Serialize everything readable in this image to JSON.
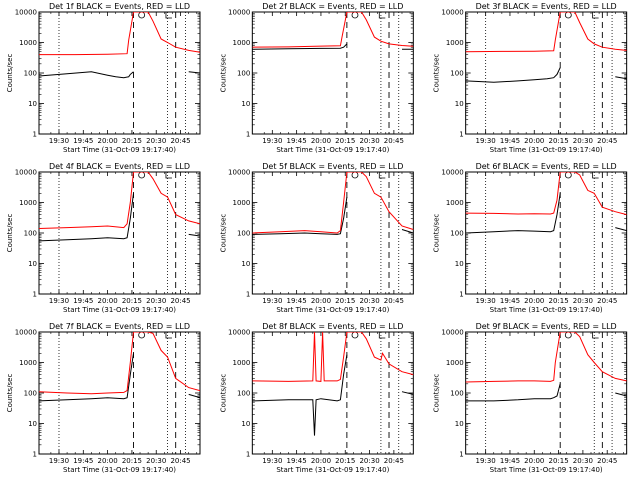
{
  "figure": {
    "xlabel": "Start Time (31-Oct-09 19:17:40)",
    "ylabel": "Counts/sec",
    "colors": {
      "events": "#000000",
      "lld": "#ff0000",
      "background": "#ffffff"
    }
  },
  "chart_data": [
    {
      "type": "line",
      "title": "Det 1f BLACK = Events, RED = LLD",
      "xlabel": "Start Time (31-Oct-09 19:17:40)",
      "ylabel": "Counts/sec",
      "x_ticks": [
        "19:30",
        "19:45",
        "20:00",
        "20:15",
        "20:30",
        "20:45"
      ],
      "y_ticks": [
        "1",
        "10",
        "100",
        "1000",
        "10000"
      ],
      "y_scale": "log",
      "ylim": [
        1,
        10000
      ],
      "xlim": [
        "19:17:40",
        "20:57"
      ],
      "vlines_dotted": [
        "19:30",
        "20:37",
        "20:48"
      ],
      "vlines_dashed": [
        "20:16",
        "20:42"
      ],
      "markers": [
        "20:21",
        "20:36"
      ],
      "series": [
        {
          "name": "Events",
          "color": "#000000",
          "x": [
            "19:17:40",
            "19:35",
            "19:50",
            "20:00",
            "20:05",
            "20:10",
            "20:13",
            "20:14",
            "20:16",
            "20:49",
            "20:50",
            "20:57"
          ],
          "y": [
            80,
            95,
            110,
            85,
            75,
            70,
            75,
            90,
            110,
            null,
            110,
            100
          ]
        },
        {
          "name": "LLD",
          "color": "#ff0000",
          "x": [
            "19:17:40",
            "19:40",
            "20:00",
            "20:12",
            "20:13",
            "20:16",
            "20:20",
            "20:25",
            "20:28",
            "20:33",
            "20:37",
            "20:42",
            "20:50",
            "20:57"
          ],
          "y": [
            400,
            400,
            410,
            430,
            1200,
            10000,
            10000,
            10000,
            5000,
            1300,
            1000,
            700,
            550,
            480
          ]
        }
      ]
    },
    {
      "type": "line",
      "title": "Det 2f BLACK = Events, RED = LLD",
      "xlabel": "Start Time (31-Oct-09 19:17:40)",
      "ylabel": "Counts/sec",
      "x_ticks": [
        "19:30",
        "19:45",
        "20:00",
        "20:15",
        "20:30",
        "20:45"
      ],
      "y_ticks": [
        "1",
        "10",
        "100",
        "1000",
        "10000"
      ],
      "y_scale": "log",
      "ylim": [
        1,
        10000
      ],
      "xlim": [
        "19:17:40",
        "20:57"
      ],
      "vlines_dotted": [
        "20:37",
        "20:48"
      ],
      "vlines_dashed": [
        "20:16",
        "20:42"
      ],
      "markers": [
        "20:21",
        "20:36"
      ],
      "series": [
        {
          "name": "Events",
          "color": "#000000",
          "x": [
            "19:17:40",
            "19:40",
            "20:00",
            "20:12",
            "20:14",
            "20:16",
            "20:49",
            "20:50",
            "20:57"
          ],
          "y": [
            600,
            620,
            640,
            650,
            700,
            900,
            null,
            600,
            600
          ]
        },
        {
          "name": "LLD",
          "color": "#ff0000",
          "x": [
            "19:17:40",
            "19:40",
            "20:00",
            "20:12",
            "20:13",
            "20:16",
            "20:20",
            "20:25",
            "20:28",
            "20:33",
            "20:37",
            "20:42",
            "20:50",
            "20:57"
          ],
          "y": [
            700,
            720,
            760,
            780,
            1500,
            10000,
            10000,
            10000,
            5500,
            1500,
            1100,
            900,
            800,
            750
          ]
        }
      ]
    },
    {
      "type": "line",
      "title": "Det 3f BLACK = Events, RED = LLD",
      "xlabel": "Start Time (31-Oct-09 19:17:40)",
      "ylabel": "Counts/sec",
      "x_ticks": [
        "19:30",
        "19:45",
        "20:00",
        "20:15",
        "20:30",
        "20:45"
      ],
      "y_ticks": [
        "1",
        "10",
        "100",
        "1000",
        "10000"
      ],
      "y_scale": "log",
      "ylim": [
        1,
        10000
      ],
      "xlim": [
        "19:17:40",
        "20:57"
      ],
      "vlines_dotted": [
        "19:30",
        "20:37",
        "20:48"
      ],
      "vlines_dashed": [
        "20:16",
        "20:42"
      ],
      "markers": [
        "20:21",
        "20:36"
      ],
      "series": [
        {
          "name": "Events",
          "color": "#000000",
          "x": [
            "19:17:40",
            "19:35",
            "19:50",
            "20:00",
            "20:08",
            "20:12",
            "20:14",
            "20:16",
            "20:49",
            "20:50",
            "20:57"
          ],
          "y": [
            55,
            50,
            55,
            60,
            65,
            70,
            90,
            150,
            null,
            75,
            65
          ]
        },
        {
          "name": "LLD",
          "color": "#ff0000",
          "x": [
            "19:17:40",
            "19:40",
            "20:00",
            "20:12",
            "20:13",
            "20:16",
            "20:20",
            "20:25",
            "20:28",
            "20:33",
            "20:37",
            "20:42",
            "20:50",
            "20:57"
          ],
          "y": [
            500,
            510,
            520,
            540,
            1200,
            10000,
            10000,
            10000,
            4500,
            1300,
            900,
            700,
            600,
            550
          ]
        }
      ]
    },
    {
      "type": "line",
      "title": "Det 4f BLACK = Events, RED = LLD",
      "xlabel": "Start Time (31-Oct-09 19:17:40)",
      "ylabel": "Counts/sec",
      "x_ticks": [
        "19:30",
        "19:45",
        "20:00",
        "20:15",
        "20:30",
        "20:45"
      ],
      "y_ticks": [
        "1",
        "10",
        "100",
        "1000",
        "10000"
      ],
      "y_scale": "log",
      "ylim": [
        1,
        10000
      ],
      "xlim": [
        "19:17:40",
        "20:57"
      ],
      "vlines_dotted": [
        "19:30",
        "20:37",
        "20:48"
      ],
      "vlines_dashed": [
        "20:16",
        "20:42"
      ],
      "markers": [
        "20:21",
        "20:36"
      ],
      "series": [
        {
          "name": "Events",
          "color": "#000000",
          "x": [
            "19:17:40",
            "19:35",
            "19:50",
            "20:00",
            "20:10",
            "20:12",
            "20:14",
            "20:16",
            "20:49",
            "20:50",
            "20:57"
          ],
          "y": [
            55,
            60,
            65,
            70,
            65,
            70,
            300,
            2000,
            null,
            90,
            80
          ]
        },
        {
          "name": "LLD",
          "color": "#ff0000",
          "x": [
            "19:17:40",
            "19:35",
            "19:50",
            "20:00",
            "20:10",
            "20:12",
            "20:14",
            "20:16",
            "20:20",
            "20:25",
            "20:28",
            "20:33",
            "20:37",
            "20:42",
            "20:50",
            "20:57"
          ],
          "y": [
            140,
            150,
            160,
            170,
            150,
            200,
            1000,
            10000,
            10000,
            10000,
            6000,
            2000,
            1500,
            400,
            250,
            200
          ]
        }
      ]
    },
    {
      "type": "line",
      "title": "Det 5f BLACK = Events, RED = LLD",
      "xlabel": "Start Time (31-Oct-09 19:17:40)",
      "ylabel": "Counts/sec",
      "x_ticks": [
        "19:30",
        "19:45",
        "20:00",
        "20:15",
        "20:30",
        "20:45"
      ],
      "y_ticks": [
        "1",
        "10",
        "100",
        "1000",
        "10000"
      ],
      "y_scale": "log",
      "ylim": [
        1,
        10000
      ],
      "xlim": [
        "19:17:40",
        "20:57"
      ],
      "vlines_dotted": [
        "20:37",
        "20:48"
      ],
      "vlines_dashed": [
        "20:16",
        "20:42"
      ],
      "markers": [
        "20:21",
        "20:36"
      ],
      "series": [
        {
          "name": "Events",
          "color": "#000000",
          "x": [
            "19:17:40",
            "19:35",
            "19:50",
            "20:00",
            "20:10",
            "20:12",
            "20:14",
            "20:16",
            "20:49",
            "20:50",
            "20:57"
          ],
          "y": [
            90,
            95,
            100,
            95,
            90,
            95,
            300,
            1500,
            null,
            130,
            100
          ]
        },
        {
          "name": "LLD",
          "color": "#ff0000",
          "x": [
            "19:17:40",
            "19:35",
            "19:50",
            "20:00",
            "20:10",
            "20:12",
            "20:14",
            "20:16",
            "20:20",
            "20:25",
            "20:28",
            "20:33",
            "20:37",
            "20:42",
            "20:50",
            "20:57"
          ],
          "y": [
            100,
            110,
            120,
            110,
            100,
            120,
            1000,
            10000,
            10000,
            10000,
            7000,
            2000,
            1500,
            500,
            170,
            130
          ]
        }
      ]
    },
    {
      "type": "line",
      "title": "Det 6f BLACK = Events, RED = LLD",
      "xlabel": "Start Time (31-Oct-09 19:17:40)",
      "ylabel": "Counts/sec",
      "x_ticks": [
        "19:30",
        "19:45",
        "20:00",
        "20:15",
        "20:30",
        "20:45"
      ],
      "y_ticks": [
        "1",
        "10",
        "100",
        "1000",
        "10000"
      ],
      "y_scale": "log",
      "ylim": [
        1,
        10000
      ],
      "xlim": [
        "19:17:40",
        "20:57"
      ],
      "vlines_dotted": [
        "19:30",
        "20:37",
        "20:48"
      ],
      "vlines_dashed": [
        "20:16",
        "20:42"
      ],
      "markers": [
        "20:21",
        "20:36"
      ],
      "series": [
        {
          "name": "Events",
          "color": "#000000",
          "x": [
            "19:17:40",
            "19:35",
            "19:50",
            "20:00",
            "20:10",
            "20:12",
            "20:14",
            "20:16",
            "20:49",
            "20:50",
            "20:57"
          ],
          "y": [
            100,
            110,
            120,
            115,
            110,
            120,
            400,
            2000,
            null,
            150,
            120
          ]
        },
        {
          "name": "LLD",
          "color": "#ff0000",
          "x": [
            "19:17:40",
            "19:35",
            "19:50",
            "20:00",
            "20:10",
            "20:12",
            "20:14",
            "20:16",
            "20:20",
            "20:25",
            "20:28",
            "20:33",
            "20:37",
            "20:42",
            "20:50",
            "20:57"
          ],
          "y": [
            450,
            440,
            420,
            430,
            420,
            450,
            1200,
            10000,
            10000,
            10000,
            8000,
            2500,
            2000,
            700,
            500,
            400
          ]
        }
      ]
    },
    {
      "type": "line",
      "title": "Det 7f BLACK = Events, RED = LLD",
      "xlabel": "Start Time (31-Oct-09 19:17:40)",
      "ylabel": "Counts/sec",
      "x_ticks": [
        "19:30",
        "19:45",
        "20:00",
        "20:15",
        "20:30",
        "20:45"
      ],
      "y_ticks": [
        "1",
        "10",
        "100",
        "1000",
        "10000"
      ],
      "y_scale": "log",
      "ylim": [
        1,
        10000
      ],
      "xlim": [
        "19:17:40",
        "20:57"
      ],
      "vlines_dotted": [
        "19:30",
        "20:37",
        "20:48"
      ],
      "vlines_dashed": [
        "20:16",
        "20:42"
      ],
      "markers": [
        "20:21",
        "20:36"
      ],
      "series": [
        {
          "name": "Events",
          "color": "#000000",
          "x": [
            "19:17:40",
            "19:35",
            "19:50",
            "20:00",
            "20:10",
            "20:12",
            "20:14",
            "20:16",
            "20:49",
            "20:50",
            "20:57"
          ],
          "y": [
            55,
            60,
            65,
            70,
            65,
            70,
            400,
            2000,
            null,
            90,
            70
          ]
        },
        {
          "name": "LLD",
          "color": "#ff0000",
          "x": [
            "19:17:40",
            "19:35",
            "19:50",
            "20:00",
            "20:10",
            "20:12",
            "20:14",
            "20:16",
            "20:20",
            "20:25",
            "20:28",
            "20:33",
            "20:37",
            "20:42",
            "20:50",
            "20:57"
          ],
          "y": [
            110,
            100,
            95,
            100,
            105,
            120,
            1000,
            10000,
            10000,
            10000,
            9000,
            2500,
            1500,
            300,
            150,
            120
          ]
        }
      ]
    },
    {
      "type": "line",
      "title": "Det 8f BLACK = Events, RED = LLD",
      "xlabel": "Start Time (31-Oct-09 19:17:40)",
      "ylabel": "Counts/sec",
      "x_ticks": [
        "19:30",
        "19:45",
        "20:00",
        "20:15",
        "20:30",
        "20:45"
      ],
      "y_ticks": [
        "1",
        "10",
        "100",
        "1000",
        "10000"
      ],
      "y_scale": "log",
      "ylim": [
        1,
        10000
      ],
      "xlim": [
        "19:17:40",
        "20:57"
      ],
      "vlines_dotted": [
        "20:37",
        "20:48"
      ],
      "vlines_dashed": [
        "20:16",
        "20:42"
      ],
      "markers": [
        "20:21",
        "20:36"
      ],
      "series": [
        {
          "name": "Events",
          "color": "#000000",
          "x": [
            "19:17:40",
            "19:40",
            "19:55",
            "19:56",
            "19:57",
            "20:00",
            "20:10",
            "20:12",
            "20:14",
            "20:16",
            "20:49",
            "20:50",
            "20:57"
          ],
          "y": [
            55,
            60,
            60,
            4,
            60,
            65,
            55,
            60,
            400,
            1800,
            null,
            110,
            90
          ]
        },
        {
          "name": "LLD",
          "color": "#ff0000",
          "x": [
            "19:17:40",
            "19:40",
            "19:55",
            "19:56",
            "19:57",
            "20:00",
            "20:01",
            "20:02",
            "20:10",
            "20:12",
            "20:14",
            "20:16",
            "20:20",
            "20:25",
            "20:28",
            "20:33",
            "20:37",
            "20:38",
            "20:42",
            "20:50",
            "20:57"
          ],
          "y": [
            250,
            240,
            250,
            10000,
            250,
            240,
            10000,
            250,
            250,
            280,
            1500,
            10000,
            10000,
            10000,
            6000,
            1500,
            1200,
            2000,
            900,
            500,
            400
          ]
        }
      ]
    },
    {
      "type": "line",
      "title": "Det 9f BLACK = Events, RED = LLD",
      "xlabel": "Start Time (31-Oct-09 19:17:40)",
      "ylabel": "Counts/sec",
      "x_ticks": [
        "19:30",
        "19:45",
        "20:00",
        "20:15",
        "20:30",
        "20:45"
      ],
      "y_ticks": [
        "1",
        "10",
        "100",
        "1000",
        "10000"
      ],
      "y_scale": "log",
      "ylim": [
        1,
        10000
      ],
      "xlim": [
        "19:17:40",
        "20:57"
      ],
      "vlines_dotted": [
        "19:30",
        "20:37",
        "20:48"
      ],
      "vlines_dashed": [
        "20:16",
        "20:42"
      ],
      "markers": [
        "20:21",
        "20:36"
      ],
      "series": [
        {
          "name": "Events",
          "color": "#000000",
          "x": [
            "19:17:40",
            "19:35",
            "19:50",
            "20:00",
            "20:10",
            "20:12",
            "20:14",
            "20:16",
            "20:49",
            "20:50",
            "20:57"
          ],
          "y": [
            55,
            55,
            60,
            65,
            65,
            70,
            80,
            200,
            null,
            100,
            80
          ]
        },
        {
          "name": "LLD",
          "color": "#ff0000",
          "x": [
            "19:17:40",
            "19:35",
            "19:50",
            "20:00",
            "20:10",
            "20:12",
            "20:13",
            "20:16",
            "20:20",
            "20:25",
            "20:28",
            "20:33",
            "20:37",
            "20:42",
            "20:50",
            "20:57"
          ],
          "y": [
            230,
            240,
            250,
            250,
            240,
            260,
            1000,
            10000,
            10000,
            10000,
            7000,
            1800,
            1000,
            500,
            300,
            250
          ]
        }
      ]
    }
  ]
}
